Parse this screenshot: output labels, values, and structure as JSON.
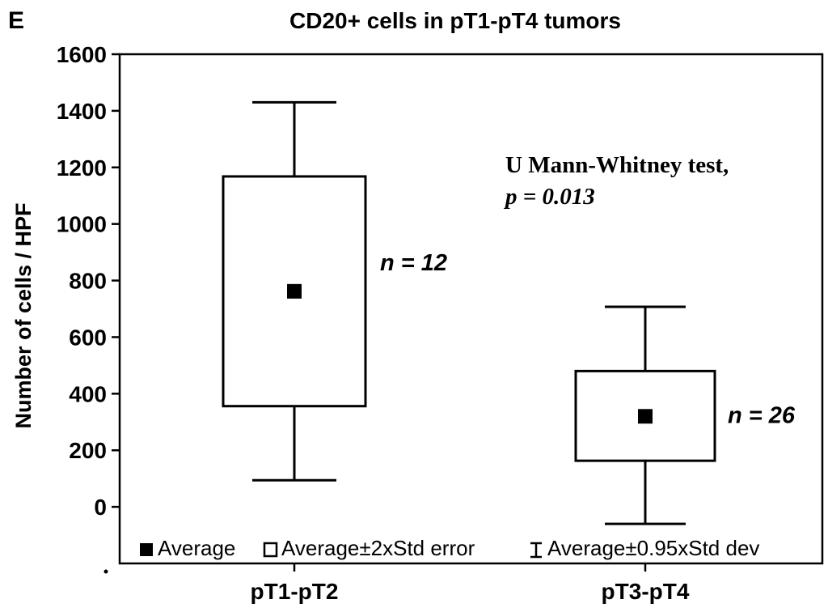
{
  "panel_label": "E",
  "chart_data": {
    "type": "box",
    "title": "CD20+ cells in pT1-pT4 tumors",
    "xlabel": "",
    "ylabel": "Number of cells / HPF",
    "ylim": [
      -200,
      1600
    ],
    "yticks": [
      0,
      200,
      400,
      600,
      800,
      1000,
      1200,
      1400,
      1600
    ],
    "categories": [
      "pT1-pT2",
      "pT3-pT4"
    ],
    "series": [
      {
        "category": "pT1-pT2",
        "mean": 762,
        "box_low": 356,
        "box_high": 1168,
        "whisker_low": 94,
        "whisker_high": 1430,
        "n_label": "n = 12"
      },
      {
        "category": "pT3-pT4",
        "mean": 320,
        "box_low": 163,
        "box_high": 480,
        "whisker_low": -60,
        "whisker_high": 707,
        "n_label": "n = 26"
      }
    ],
    "annotation": {
      "line1": "U Mann-Whitney test,",
      "line2": "p = 0.013"
    },
    "legend": {
      "position": "bottom",
      "entries": [
        {
          "symbol": "filled-square",
          "label": "Average"
        },
        {
          "symbol": "open-square",
          "label": "Average±2xStd error"
        },
        {
          "symbol": "whisker",
          "label": "Average±0.95xStd dev"
        }
      ]
    },
    "grid": false
  }
}
